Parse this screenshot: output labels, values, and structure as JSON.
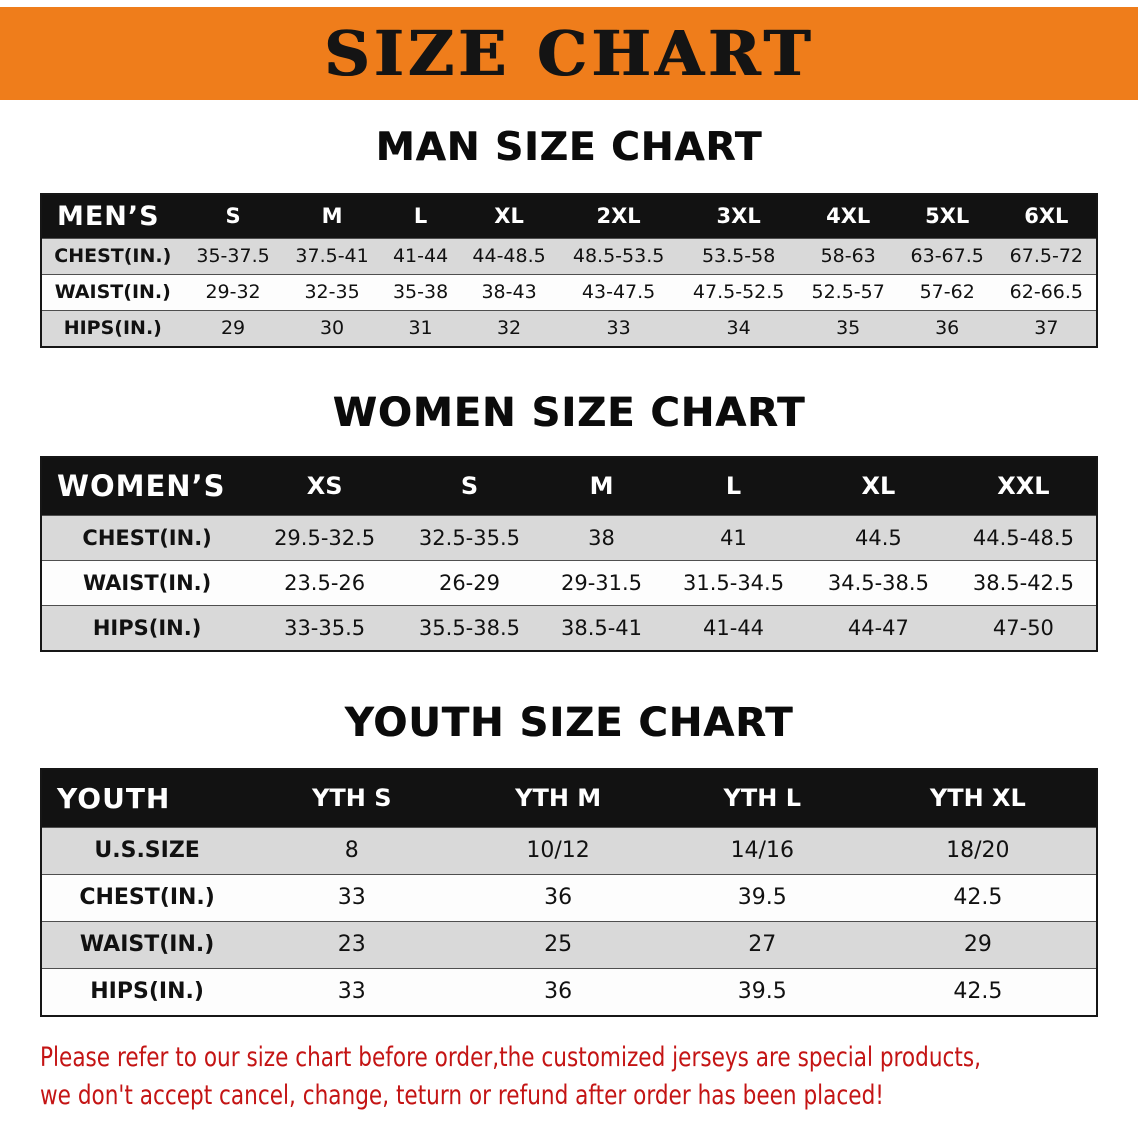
{
  "banner": {
    "title": "SIZE CHART"
  },
  "men": {
    "heading": "MAN SIZE CHART",
    "corner": "MEN’S",
    "columns": [
      "S",
      "M",
      "L",
      "XL",
      "2XL",
      "3XL",
      "4XL",
      "5XL",
      "6XL"
    ],
    "rows": [
      {
        "label": "CHEST(IN.)",
        "values": [
          "35-37.5",
          "37.5-41",
          "41-44",
          "44-48.5",
          "48.5-53.5",
          "53.5-58",
          "58-63",
          "63-67.5",
          "67.5-72"
        ]
      },
      {
        "label": "WAIST(IN.)",
        "values": [
          "29-32",
          "32-35",
          "35-38",
          "38-43",
          "43-47.5",
          "47.5-52.5",
          "52.5-57",
          "57-62",
          "62-66.5"
        ]
      },
      {
        "label": "HIPS(IN.)",
        "values": [
          "29",
          "30",
          "31",
          "32",
          "33",
          "34",
          "35",
          "36",
          "37"
        ]
      }
    ]
  },
  "women": {
    "heading": "WOMEN SIZE CHART",
    "corner": "WOMEN’S",
    "columns": [
      "XS",
      "S",
      "M",
      "L",
      "XL",
      "XXL"
    ],
    "rows": [
      {
        "label": "CHEST(IN.)",
        "values": [
          "29.5-32.5",
          "32.5-35.5",
          "38",
          "41",
          "44.5",
          "44.5-48.5"
        ]
      },
      {
        "label": "WAIST(IN.)",
        "values": [
          "23.5-26",
          "26-29",
          "29-31.5",
          "31.5-34.5",
          "34.5-38.5",
          "38.5-42.5"
        ]
      },
      {
        "label": "HIPS(IN.)",
        "values": [
          "33-35.5",
          "35.5-38.5",
          "38.5-41",
          "41-44",
          "44-47",
          "47-50"
        ]
      }
    ]
  },
  "youth": {
    "heading": "YOUTH SIZE CHART",
    "corner": "YOUTH",
    "columns": [
      "YTH S",
      "YTH M",
      "YTH L",
      "YTH XL"
    ],
    "rows": [
      {
        "label": "U.S.SIZE",
        "values": [
          "8",
          "10/12",
          "14/16",
          "18/20"
        ]
      },
      {
        "label": "CHEST(IN.)",
        "values": [
          "33",
          "36",
          "39.5",
          "42.5"
        ]
      },
      {
        "label": "WAIST(IN.)",
        "values": [
          "23",
          "25",
          "27",
          "29"
        ]
      },
      {
        "label": "HIPS(IN.)",
        "values": [
          "33",
          "36",
          "39.5",
          "42.5"
        ]
      }
    ]
  },
  "notice": {
    "line1": "Please refer to our size chart before order,the customized jerseys are special products,",
    "line2": "we don't accept cancel, change, teturn or refund after order has been placed!"
  },
  "colors": {
    "banner_bg": "#EF7D1B",
    "table_header_bg": "#121212",
    "row_alt_bg": "#D9D9D9",
    "notice_red": "#C41414"
  }
}
